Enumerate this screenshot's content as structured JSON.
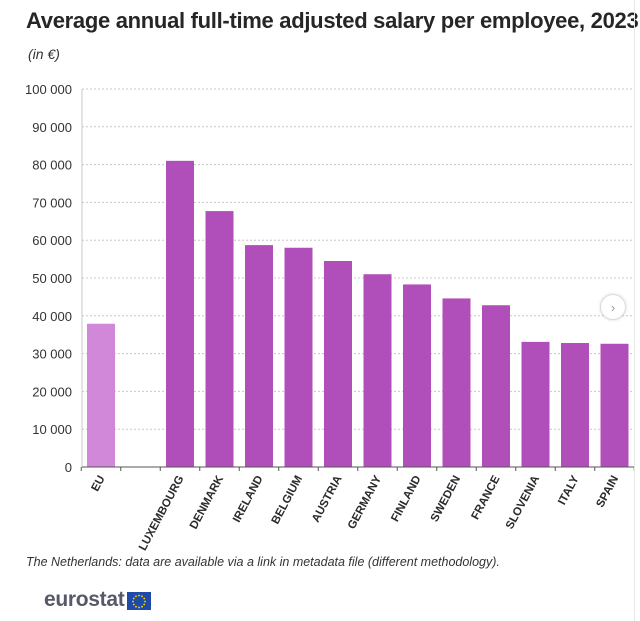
{
  "header": {
    "title": "Average annual full-time adjusted salary per employee, 2023",
    "unit": "(in €)"
  },
  "chart_data": {
    "type": "bar",
    "title": "Average annual full-time adjusted salary per employee, 2023",
    "ylabel": "(in €)",
    "xlabel": "",
    "ylim": [
      0,
      100000
    ],
    "yticks": [
      0,
      10000,
      20000,
      30000,
      40000,
      50000,
      60000,
      70000,
      80000,
      90000,
      100000
    ],
    "ytick_labels": [
      "0",
      "10 000",
      "20 000",
      "30 000",
      "40 000",
      "50 000",
      "60 000",
      "70 000",
      "80 000",
      "90 000",
      "100 000"
    ],
    "grid": true,
    "categories": [
      "EU",
      "",
      "LUXEMBOURG",
      "DENMARK",
      "IRELAND",
      "BELGIUM",
      "AUSTRIA",
      "GERMANY",
      "FINLAND",
      "SWEDEN",
      "FRANCE",
      "SLOVENIA",
      "ITALY",
      "SPAIN"
    ],
    "values": [
      37900,
      null,
      81000,
      67700,
      58700,
      58000,
      54500,
      51000,
      48300,
      44600,
      42800,
      33100,
      32800,
      32600
    ],
    "colors": [
      "#d188d8",
      null,
      "#b04fba",
      "#b04fba",
      "#b04fba",
      "#b04fba",
      "#b04fba",
      "#b04fba",
      "#b04fba",
      "#b04fba",
      "#b04fba",
      "#b04fba",
      "#b04fba",
      "#b04fba"
    ]
  },
  "footer": {
    "note": "The Netherlands: data are available via a link in metadata file (different methodology).",
    "logo_text": "eurostat",
    "logo_icon": "eu-flag-icon"
  },
  "controls": {
    "next_icon": "chevron-right-icon",
    "next_glyph": "›"
  }
}
